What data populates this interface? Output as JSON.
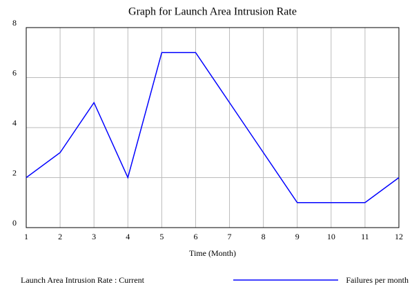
{
  "chart_data": {
    "type": "line",
    "title": "Graph for Launch Area Intrusion Rate",
    "x_label": "Time (Month)",
    "x": [
      1,
      2,
      3,
      4,
      5,
      6,
      7,
      8,
      9,
      10,
      11,
      12
    ],
    "series": [
      {
        "name": "Launch Area Intrusion Rate : Current",
        "color": "#0000ff",
        "values": [
          2,
          3,
          5,
          2,
          7,
          7,
          5,
          3,
          1,
          1,
          1,
          2
        ]
      }
    ],
    "units": "Failures per month",
    "xlim": [
      1,
      12
    ],
    "xticks": [
      1,
      2,
      3,
      4,
      5,
      6,
      7,
      8,
      9,
      10,
      11,
      12
    ],
    "ylim": [
      0,
      8
    ],
    "yticks": [
      0,
      2,
      4,
      6,
      8
    ],
    "grid": true
  }
}
